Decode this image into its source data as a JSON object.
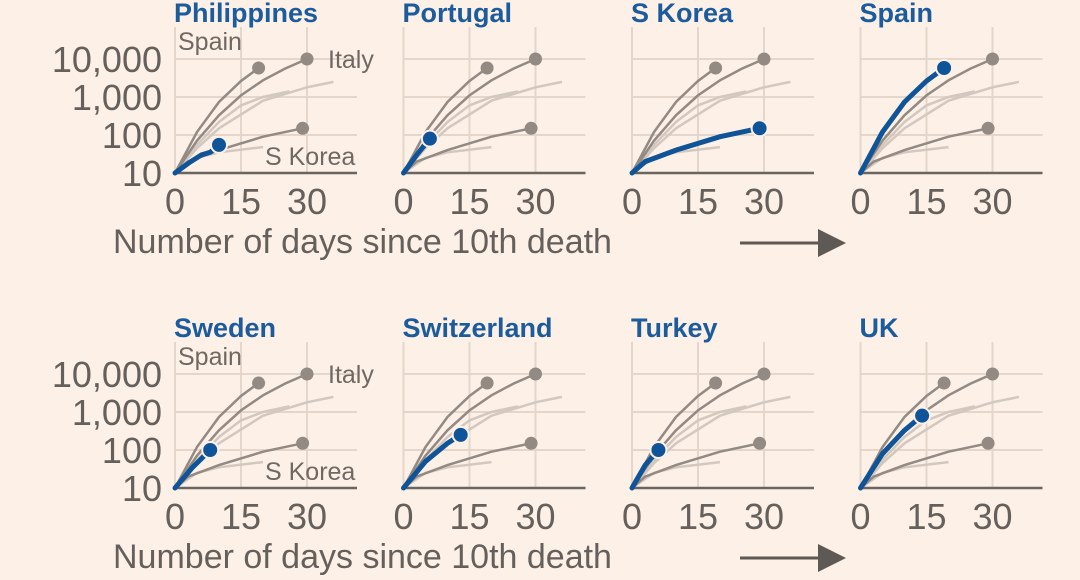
{
  "chart_data": {
    "type": "line",
    "layout": "small-multiples 2x4",
    "xlabel": "Number of days since 10th death",
    "ylabel": "",
    "yscale": "log",
    "ylim": [
      10,
      10000
    ],
    "xlim": [
      0,
      40
    ],
    "yticks": [
      "10,000",
      "1,000",
      "100",
      "10"
    ],
    "ytick_values": [
      10000,
      1000,
      100,
      10
    ],
    "xticks": [
      "0",
      "15",
      "30"
    ],
    "xtick_values": [
      0,
      15,
      30
    ],
    "grid": true,
    "annotations": {
      "spain": "Spain",
      "italy": "Italy",
      "skorea": "S Korea"
    },
    "reference_series": [
      {
        "name": "Spain",
        "style": "dark",
        "end_marker": true,
        "points": [
          [
            0,
            10
          ],
          [
            5,
            120
          ],
          [
            10,
            740
          ],
          [
            15,
            2640
          ],
          [
            19,
            5800
          ]
        ]
      },
      {
        "name": "Italy",
        "style": "dark",
        "end_marker": true,
        "points": [
          [
            0,
            10
          ],
          [
            5,
            71
          ],
          [
            10,
            330
          ],
          [
            15,
            1100
          ],
          [
            20,
            2750
          ],
          [
            25,
            5600
          ],
          [
            30,
            10000
          ]
        ]
      },
      {
        "name": "S Korea",
        "style": "dark",
        "end_marker": true,
        "points": [
          [
            0,
            10
          ],
          [
            3,
            20
          ],
          [
            10,
            40
          ],
          [
            20,
            90
          ],
          [
            29,
            150
          ]
        ]
      },
      {
        "name": "",
        "style": "light",
        "end_marker": false,
        "points": [
          [
            0,
            10
          ],
          [
            5,
            45
          ],
          [
            10,
            150
          ],
          [
            20,
            800
          ],
          [
            30,
            1800
          ],
          [
            36,
            2500
          ]
        ]
      },
      {
        "name": "",
        "style": "light",
        "end_marker": false,
        "points": [
          [
            0,
            10
          ],
          [
            5,
            55
          ],
          [
            10,
            220
          ],
          [
            15,
            600
          ],
          [
            20,
            1000
          ],
          [
            26,
            1400
          ]
        ]
      },
      {
        "name": "",
        "style": "light",
        "end_marker": false,
        "points": [
          [
            0,
            10
          ],
          [
            5,
            25
          ],
          [
            10,
            35
          ],
          [
            20,
            48
          ]
        ]
      }
    ],
    "panels": [
      {
        "title": "Philippines",
        "points": [
          [
            0,
            10
          ],
          [
            3,
            18
          ],
          [
            6,
            30
          ],
          [
            8,
            35
          ],
          [
            10,
            55
          ]
        ]
      },
      {
        "title": "Portugal",
        "points": [
          [
            0,
            10
          ],
          [
            3,
            30
          ],
          [
            6,
            80
          ]
        ]
      },
      {
        "title": "S Korea",
        "points": [
          [
            0,
            10
          ],
          [
            3,
            20
          ],
          [
            10,
            40
          ],
          [
            20,
            90
          ],
          [
            29,
            150
          ]
        ]
      },
      {
        "title": "Spain",
        "points": [
          [
            0,
            10
          ],
          [
            5,
            120
          ],
          [
            10,
            740
          ],
          [
            15,
            2640
          ],
          [
            19,
            5800
          ]
        ]
      },
      {
        "title": "Sweden",
        "points": [
          [
            0,
            10
          ],
          [
            4,
            35
          ],
          [
            8,
            100
          ]
        ]
      },
      {
        "title": "Switzerland",
        "points": [
          [
            0,
            10
          ],
          [
            5,
            50
          ],
          [
            10,
            150
          ],
          [
            13,
            250
          ]
        ]
      },
      {
        "title": "Turkey",
        "points": [
          [
            0,
            10
          ],
          [
            3,
            40
          ],
          [
            6,
            100
          ]
        ]
      },
      {
        "title": "UK",
        "points": [
          [
            0,
            10
          ],
          [
            5,
            80
          ],
          [
            10,
            330
          ],
          [
            14,
            800
          ]
        ]
      }
    ],
    "colors": {
      "highlight": "#0f5499",
      "dark": "#938a84",
      "light": "#d3c8bf",
      "grid": "#e4d6ca",
      "axis": "#6b6560",
      "background": "#fdf0e6"
    }
  }
}
